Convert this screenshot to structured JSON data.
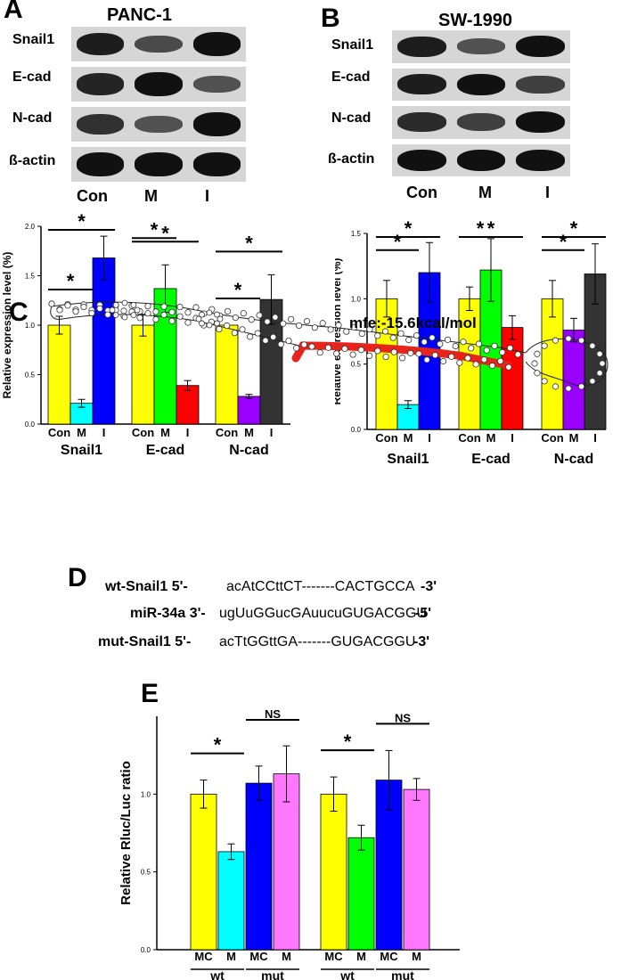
{
  "panels": {
    "A": {
      "letter": "A",
      "cell_line": "PANC-1",
      "blot_rows": [
        "Snail1",
        "E-cad",
        "N-cad",
        "ß-actin"
      ],
      "lanes": [
        "Con",
        "M",
        "I"
      ],
      "band_intensity": [
        [
          0.9,
          0.55,
          1.0
        ],
        [
          0.85,
          1.0,
          0.5
        ],
        [
          0.75,
          0.5,
          1.0
        ],
        [
          1.0,
          1.0,
          1.0
        ]
      ]
    },
    "B": {
      "letter": "B",
      "cell_line": "SW-1990",
      "blot_rows": [
        "Snail1",
        "E-cad",
        "N-cad",
        "ß-actin"
      ],
      "lanes": [
        "Con",
        "M",
        "I"
      ],
      "band_intensity": [
        [
          0.9,
          0.5,
          1.0
        ],
        [
          0.9,
          1.0,
          0.65
        ],
        [
          0.8,
          0.65,
          1.0
        ],
        [
          1.0,
          1.0,
          1.0
        ]
      ]
    },
    "C": {
      "letter": "C",
      "mfe": "mfe:-15.6kcal/mol"
    },
    "D": {
      "letter": "D",
      "rows": [
        {
          "name": "wt-Snail1",
          "end5": "5'-",
          "seq": "acAtCCttCT-------CACTGCCA",
          "end3": "-3'"
        },
        {
          "name": "miR-34a",
          "end5": "3'-",
          "seq": "ugUuGGucGAuucuGUGACGGU",
          "end3": "-5'"
        },
        {
          "name": "mut-Snail1",
          "end5": "5'-",
          "seq": "acTtGGttGA-------GUGACGGU",
          "end3": "-3'"
        }
      ]
    },
    "E": {
      "letter": "E"
    }
  },
  "chart_data": [
    {
      "type": "bar",
      "id": "A-bars",
      "ylabel": "Relative expression level (%)",
      "ylim": [
        0,
        2.0
      ],
      "yticks": [
        "0.0",
        "0.5",
        "1.0",
        "1.5",
        "2.0"
      ],
      "groups": [
        {
          "name": "Snail1",
          "bars": [
            {
              "label": "Con",
              "value": 1.0,
              "err": 0.09,
              "color": "#ffff00"
            },
            {
              "label": "M",
              "value": 0.21,
              "err": 0.04,
              "color": "#00ffff"
            },
            {
              "label": "I",
              "value": 1.68,
              "err": 0.22,
              "color": "#0000ff"
            }
          ]
        },
        {
          "name": "E-cad",
          "bars": [
            {
              "label": "Con",
              "value": 1.0,
              "err": 0.11,
              "color": "#ffff00"
            },
            {
              "label": "M",
              "value": 1.37,
              "err": 0.24,
              "color": "#00ff00"
            },
            {
              "label": "I",
              "value": 0.39,
              "err": 0.05,
              "color": "#ff0000"
            }
          ]
        },
        {
          "name": "N-cad",
          "bars": [
            {
              "label": "Con",
              "value": 1.0,
              "err": 0.0,
              "color": "#ffff00"
            },
            {
              "label": "M",
              "value": 0.28,
              "err": 0.02,
              "color": "#9900ff"
            },
            {
              "label": "I",
              "value": 1.26,
              "err": 0.25,
              "color": "#333333"
            }
          ]
        }
      ],
      "significance": [
        {
          "group": 0,
          "from": 0,
          "to": 1,
          "label": "*"
        },
        {
          "group": 0,
          "from": 0,
          "to": 2,
          "label": "*"
        },
        {
          "group": 1,
          "from": 0,
          "to": 1,
          "label": "*"
        },
        {
          "group": 1,
          "from": 0,
          "to": 2,
          "label": "*"
        },
        {
          "group": 2,
          "from": 0,
          "to": 1,
          "label": "*"
        },
        {
          "group": 2,
          "from": 0,
          "to": 2,
          "label": "*"
        }
      ]
    },
    {
      "type": "bar",
      "id": "B-bars",
      "ylabel": "Relative expression level (%)",
      "ylim": [
        0,
        1.5
      ],
      "yticks": [
        "0.0",
        "0.5",
        "1.0",
        "1.5"
      ],
      "groups": [
        {
          "name": "Snail1",
          "bars": [
            {
              "label": "Con",
              "value": 1.0,
              "err": 0.14,
              "color": "#ffff00"
            },
            {
              "label": "M",
              "value": 0.19,
              "err": 0.03,
              "color": "#00ffff"
            },
            {
              "label": "I",
              "value": 1.2,
              "err": 0.23,
              "color": "#0000ff"
            }
          ]
        },
        {
          "name": "E-cad",
          "bars": [
            {
              "label": "Con",
              "value": 1.0,
              "err": 0.09,
              "color": "#ffff00"
            },
            {
              "label": "M",
              "value": 1.22,
              "err": 0.24,
              "color": "#00ff00"
            },
            {
              "label": "I",
              "value": 0.78,
              "err": 0.09,
              "color": "#ff0000"
            }
          ]
        },
        {
          "name": "N-cad",
          "bars": [
            {
              "label": "Con",
              "value": 1.0,
              "err": 0.14,
              "color": "#ffff00"
            },
            {
              "label": "M",
              "value": 0.76,
              "err": 0.09,
              "color": "#9900ff"
            },
            {
              "label": "I",
              "value": 1.19,
              "err": 0.23,
              "color": "#333333"
            }
          ]
        }
      ],
      "significance": [
        {
          "group": 0,
          "from": 0,
          "to": 1,
          "label": "*"
        },
        {
          "group": 0,
          "from": 0,
          "to": 2,
          "label": "*"
        },
        {
          "group": 1,
          "from": 0,
          "to": 1,
          "label": "*"
        },
        {
          "group": 1,
          "from": 0,
          "to": 2,
          "label": "*"
        },
        {
          "group": 2,
          "from": 0,
          "to": 1,
          "label": "*"
        },
        {
          "group": 2,
          "from": 0,
          "to": 2,
          "label": "*"
        }
      ]
    },
    {
      "type": "bar",
      "id": "E-bars",
      "ylabel": "Relative Rluc/Luc ratio",
      "ylim": [
        0,
        1.5
      ],
      "yticks": [
        "0.0",
        "0.5",
        "1.0"
      ],
      "groups": [
        {
          "name": "PANC-1",
          "bars": [
            {
              "label": "MC",
              "value": 1.0,
              "err": 0.09,
              "color": "#ffff00",
              "sub": "wt"
            },
            {
              "label": "M",
              "value": 0.63,
              "err": 0.05,
              "color": "#00ffff",
              "sub": "wt"
            },
            {
              "label": "MC",
              "value": 1.07,
              "err": 0.11,
              "color": "#0000ff",
              "sub": "mut"
            },
            {
              "label": "M",
              "value": 1.13,
              "err": 0.18,
              "color": "#ff77ff",
              "sub": "mut"
            }
          ]
        },
        {
          "name": "SW-1990",
          "bars": [
            {
              "label": "MC",
              "value": 1.0,
              "err": 0.11,
              "color": "#ffff00",
              "sub": "wt"
            },
            {
              "label": "M",
              "value": 0.72,
              "err": 0.08,
              "color": "#00ff00",
              "sub": "wt"
            },
            {
              "label": "MC",
              "value": 1.09,
              "err": 0.19,
              "color": "#0000ff",
              "sub": "mut"
            },
            {
              "label": "M",
              "value": 1.03,
              "err": 0.07,
              "color": "#ff77ff",
              "sub": "mut"
            }
          ]
        }
      ],
      "subgroups": [
        "wt",
        "mut"
      ],
      "significance": [
        {
          "group": 0,
          "from": 0,
          "to": 1,
          "label": "*"
        },
        {
          "group": 0,
          "from": 2,
          "to": 3,
          "label": "NS"
        },
        {
          "group": 1,
          "from": 0,
          "to": 1,
          "label": "*"
        },
        {
          "group": 1,
          "from": 2,
          "to": 3,
          "label": "NS"
        }
      ]
    }
  ]
}
